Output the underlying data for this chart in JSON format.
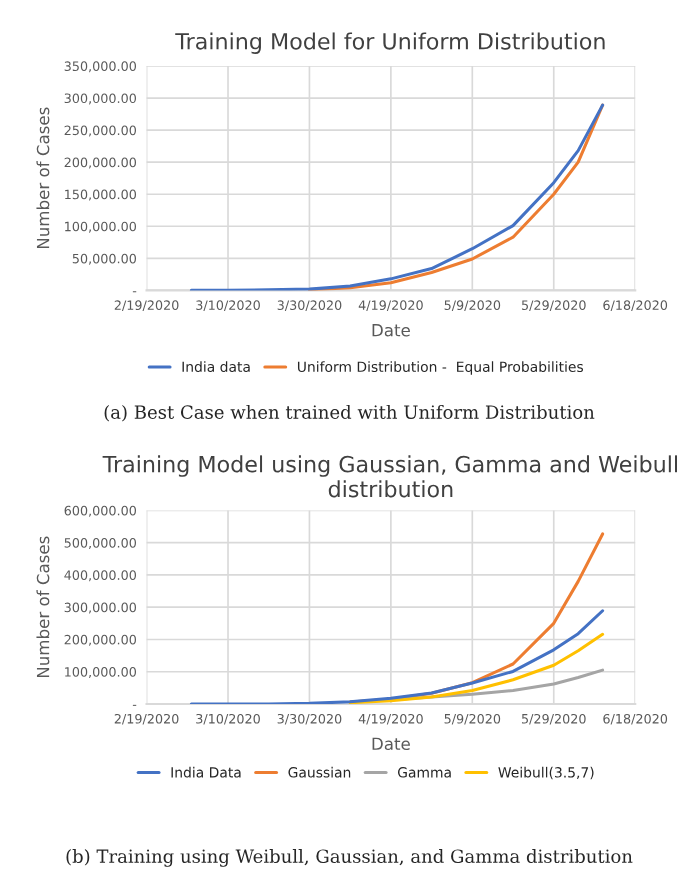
{
  "chart_data": [
    {
      "type": "line",
      "title": "Training Model for Uniform Distribution",
      "xlabel": "Date",
      "ylabel": "Number of Cases",
      "annotations": [
        "(a) Best Case when trained with Uniform Distribution"
      ],
      "x": [
        "2020-03-01",
        "2020-03-10",
        "2020-03-20",
        "2020-03-30",
        "2020-04-09",
        "2020-04-19",
        "2020-04-29",
        "2020-05-09",
        "2020-05-19",
        "2020-05-29",
        "2020-06-04",
        "2020-06-10"
      ],
      "series": [
        {
          "name": "India data",
          "color": "#4472c4",
          "values": [
            0,
            0,
            1000,
            2000,
            7000,
            18000,
            34000,
            65000,
            101000,
            168000,
            218000,
            289000
          ]
        },
        {
          "name": "Uniform Distribution -  Equal Probabilities",
          "color": "#ed7d31",
          "x": [
            "2020-03-30",
            "2020-04-09",
            "2020-04-19",
            "2020-04-29",
            "2020-05-09",
            "2020-05-19",
            "2020-05-29",
            "2020-06-04",
            "2020-06-10"
          ],
          "values": [
            1000,
            4000,
            12000,
            28000,
            49000,
            83000,
            150000,
            200000,
            289000
          ]
        }
      ],
      "xlim": [
        "2020-02-19",
        "2020-06-18"
      ],
      "xticks": [
        {
          "value": "2020-02-19",
          "label": "2/19/2020"
        },
        {
          "value": "2020-03-10",
          "label": "3/10/2020"
        },
        {
          "value": "2020-03-30",
          "label": "3/30/2020"
        },
        {
          "value": "2020-04-19",
          "label": "4/19/2020"
        },
        {
          "value": "2020-05-09",
          "label": "5/9/2020"
        },
        {
          "value": "2020-05-29",
          "label": "5/29/2020"
        },
        {
          "value": "2020-06-18",
          "label": "6/18/2020"
        }
      ],
      "ylim": [
        0,
        350000
      ],
      "yticks": [
        {
          "value": 0,
          "label": "-"
        },
        {
          "value": 50000,
          "label": "50,000.00"
        },
        {
          "value": 100000,
          "label": "100,000.00"
        },
        {
          "value": 150000,
          "label": "150,000.00"
        },
        {
          "value": 200000,
          "label": "200,000.00"
        },
        {
          "value": 250000,
          "label": "250,000.00"
        },
        {
          "value": 300000,
          "label": "300,000.00"
        },
        {
          "value": 350000,
          "label": "350,000.00"
        }
      ],
      "grid": true,
      "legend": "bottom"
    },
    {
      "type": "line",
      "title": "Training Model using Gaussian, Gamma and Weibull distribution",
      "xlabel": "Date",
      "ylabel": "Number of Cases",
      "annotations": [
        "(b) Training using Weibull, Gaussian, and Gamma distribution"
      ],
      "x": [
        "2020-03-01",
        "2020-03-10",
        "2020-03-20",
        "2020-03-30",
        "2020-04-09",
        "2020-04-19",
        "2020-04-29",
        "2020-05-09",
        "2020-05-19",
        "2020-05-29",
        "2020-06-04",
        "2020-06-10"
      ],
      "series": [
        {
          "name": "India Data",
          "color": "#4472c4",
          "values": [
            0,
            0,
            0,
            2000,
            7000,
            18000,
            34000,
            65000,
            101000,
            168000,
            218000,
            289000
          ]
        },
        {
          "name": "Gaussian",
          "color": "#ed7d31",
          "x": [
            "2020-04-09",
            "2020-04-19",
            "2020-04-29",
            "2020-05-09",
            "2020-05-19",
            "2020-05-29",
            "2020-06-04",
            "2020-06-10"
          ],
          "values": [
            6000,
            15000,
            33000,
            66000,
            124000,
            250000,
            380000,
            527000
          ]
        },
        {
          "name": "Gamma",
          "color": "#a5a5a5",
          "x": [
            "2020-04-09",
            "2020-04-19",
            "2020-04-29",
            "2020-05-09",
            "2020-05-19",
            "2020-05-29",
            "2020-06-04",
            "2020-06-10"
          ],
          "values": [
            6000,
            13000,
            22000,
            30000,
            42000,
            62000,
            82000,
            105000
          ]
        },
        {
          "name": "Weibull(3.5,7)",
          "color": "#ffc000",
          "x": [
            "2020-04-09",
            "2020-04-19",
            "2020-04-29",
            "2020-05-09",
            "2020-05-19",
            "2020-05-29",
            "2020-06-04",
            "2020-06-10"
          ],
          "values": [
            4000,
            10000,
            22000,
            42000,
            75000,
            120000,
            165000,
            216000
          ]
        }
      ],
      "xlim": [
        "2020-02-19",
        "2020-06-18"
      ],
      "xticks": [
        {
          "value": "2020-02-19",
          "label": "2/19/2020"
        },
        {
          "value": "2020-03-10",
          "label": "3/10/2020"
        },
        {
          "value": "2020-03-30",
          "label": "3/30/2020"
        },
        {
          "value": "2020-04-19",
          "label": "4/19/2020"
        },
        {
          "value": "2020-05-09",
          "label": "5/9/2020"
        },
        {
          "value": "2020-05-29",
          "label": "5/29/2020"
        },
        {
          "value": "2020-06-18",
          "label": "6/18/2020"
        }
      ],
      "ylim": [
        0,
        600000
      ],
      "yticks": [
        {
          "value": 0,
          "label": "-"
        },
        {
          "value": 100000,
          "label": "100,000.00"
        },
        {
          "value": 200000,
          "label": "200,000.00"
        },
        {
          "value": 300000,
          "label": "300,000.00"
        },
        {
          "value": 400000,
          "label": "400,000.00"
        },
        {
          "value": 500000,
          "label": "500,000.00"
        },
        {
          "value": 600000,
          "label": "600,000.00"
        }
      ],
      "grid": true,
      "legend": "bottom"
    }
  ]
}
